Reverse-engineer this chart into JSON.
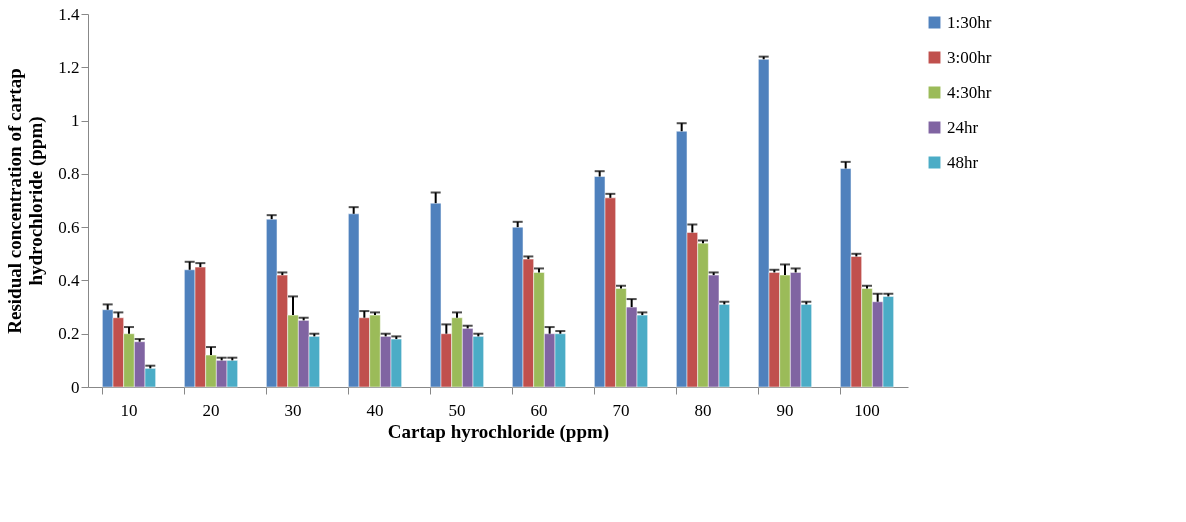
{
  "chart_data": {
    "type": "bar",
    "xlabel": "Cartap hyrochloride (ppm)",
    "ylabel": "Residual concentration of cartap hydrochloride (ppm)",
    "categories": [
      "10",
      "20",
      "30",
      "40",
      "50",
      "60",
      "70",
      "80",
      "90",
      "100"
    ],
    "ylim": [
      0,
      1.4
    ],
    "yticks": [
      0,
      0.2,
      0.4,
      0.6,
      0.8,
      1,
      1.2,
      1.4
    ],
    "grid": false,
    "legend": "right",
    "series": [
      {
        "name": "1:30hr",
        "color": "#4f81bd",
        "values": [
          0.29,
          0.44,
          0.63,
          0.65,
          0.69,
          0.6,
          0.79,
          0.96,
          1.23,
          0.82
        ],
        "errors": [
          [
            0.29,
            0.31
          ],
          [
            0.44,
            0.47
          ],
          [
            0.63,
            0.645
          ],
          [
            0.65,
            0.675
          ],
          [
            0.69,
            0.73
          ],
          [
            0.6,
            0.62
          ],
          [
            0.79,
            0.81
          ],
          [
            0.96,
            0.99
          ],
          [
            1.23,
            1.24
          ],
          [
            0.82,
            0.845
          ]
        ]
      },
      {
        "name": "3:00hr",
        "color": "#c0504d",
        "values": [
          0.26,
          0.45,
          0.42,
          0.26,
          0.2,
          0.48,
          0.71,
          0.58,
          0.43,
          0.49
        ],
        "errors": [
          [
            0.26,
            0.28
          ],
          [
            0.45,
            0.465
          ],
          [
            0.42,
            0.43
          ],
          [
            0.26,
            0.285
          ],
          [
            0.2,
            0.235
          ],
          [
            0.48,
            0.49
          ],
          [
            0.71,
            0.725
          ],
          [
            0.58,
            0.61
          ],
          [
            0.43,
            0.44
          ],
          [
            0.49,
            0.5
          ]
        ]
      },
      {
        "name": "4:30hr",
        "color": "#9bbb59",
        "values": [
          0.2,
          0.12,
          0.27,
          0.27,
          0.26,
          0.43,
          0.37,
          0.54,
          0.42,
          0.37
        ],
        "errors": [
          [
            0.2,
            0.225
          ],
          [
            0.12,
            0.15
          ],
          [
            0.27,
            0.34
          ],
          [
            0.27,
            0.28
          ],
          [
            0.26,
            0.28
          ],
          [
            0.43,
            0.445
          ],
          [
            0.37,
            0.38
          ],
          [
            0.54,
            0.55
          ],
          [
            0.42,
            0.46
          ],
          [
            0.37,
            0.38
          ]
        ]
      },
      {
        "name": "24hr",
        "color": "#8064a2",
        "values": [
          0.17,
          0.1,
          0.25,
          0.19,
          0.22,
          0.2,
          0.3,
          0.42,
          0.43,
          0.32
        ],
        "errors": [
          [
            0.17,
            0.18
          ],
          [
            0.1,
            0.11
          ],
          [
            0.25,
            0.26
          ],
          [
            0.19,
            0.2
          ],
          [
            0.22,
            0.23
          ],
          [
            0.2,
            0.225
          ],
          [
            0.3,
            0.33
          ],
          [
            0.42,
            0.43
          ],
          [
            0.43,
            0.445
          ],
          [
            0.32,
            0.35
          ]
        ]
      },
      {
        "name": "48hr",
        "color": "#4bacc6",
        "values": [
          0.07,
          0.1,
          0.19,
          0.18,
          0.19,
          0.2,
          0.27,
          0.31,
          0.31,
          0.34
        ],
        "errors": [
          [
            0.07,
            0.08
          ],
          [
            0.1,
            0.11
          ],
          [
            0.19,
            0.2
          ],
          [
            0.18,
            0.19
          ],
          [
            0.19,
            0.2
          ],
          [
            0.2,
            0.21
          ],
          [
            0.27,
            0.28
          ],
          [
            0.31,
            0.32
          ],
          [
            0.31,
            0.32
          ],
          [
            0.34,
            0.35
          ]
        ]
      }
    ]
  }
}
